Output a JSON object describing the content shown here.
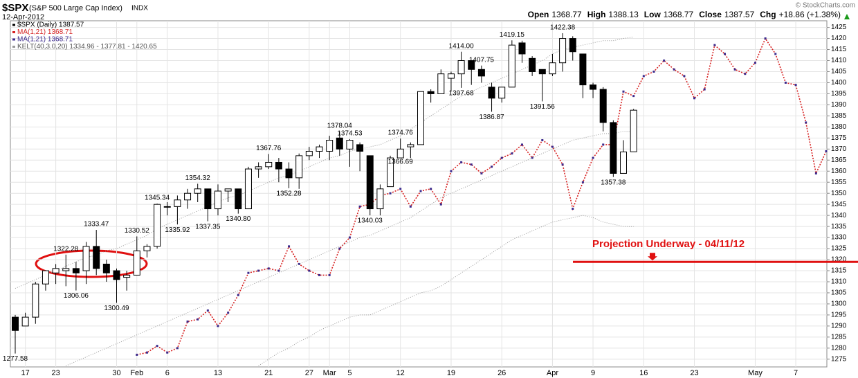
{
  "chart_data": {
    "type": "candlestick",
    "symbol": "$SPX",
    "name": "(S&P 500 Large Cap Index)",
    "exchange": "INDX",
    "date": "12-Apr-2012",
    "credit": "© StockCharts.com",
    "ohlc_header": [
      {
        "label": "Open",
        "value": "1368.77"
      },
      {
        "label": "High",
        "value": "1388.13"
      },
      {
        "label": "Low",
        "value": "1368.77"
      },
      {
        "label": "Close",
        "value": "1387.57"
      },
      {
        "label": "Chg",
        "value": "+18.86 (+1.38%)"
      }
    ],
    "legend": [
      {
        "text": "$SPX (Daily) 1387.57",
        "color": "#000000"
      },
      {
        "text": "MA(1,21) 1368.71",
        "color": "#d62020"
      },
      {
        "text": "MA(1,21) 1368.71",
        "color": "#3b2a8c"
      },
      {
        "text": "KELT(40,3.0,20) 1334.96 - 1377.81 - 1420.65",
        "color": "#999999"
      }
    ],
    "categories": [
      null,
      "17",
      null,
      null,
      "23",
      null,
      null,
      null,
      null,
      null,
      "30",
      null,
      "Feb",
      null,
      null,
      "6",
      null,
      null,
      null,
      null,
      "13",
      null,
      null,
      null,
      null,
      "21",
      null,
      null,
      null,
      "27",
      null,
      "Mar",
      null,
      "5",
      null,
      null,
      null,
      null,
      "12",
      null,
      null,
      null,
      null,
      "19",
      null,
      null,
      null,
      null,
      "26",
      null,
      null,
      null,
      null,
      "Apr",
      null,
      null,
      null,
      "9",
      null,
      null,
      null,
      null,
      "16",
      null,
      null,
      null,
      null,
      "23",
      null,
      null,
      null,
      null,
      null,
      "May",
      null,
      null,
      null,
      "7",
      null,
      null,
      null,
      null
    ],
    "candles": [
      {
        "open": 1294,
        "high": 1295,
        "low": 1277.58,
        "close": 1288
      },
      {
        "open": 1290,
        "high": 1296,
        "low": 1290,
        "close": 1294
      },
      {
        "open": 1294,
        "high": 1310,
        "low": 1291,
        "close": 1309
      },
      {
        "open": 1309,
        "high": 1315,
        "low": 1306,
        "close": 1315
      },
      {
        "open": 1314,
        "high": 1318,
        "low": 1309,
        "close": 1316
      },
      {
        "open": 1315,
        "high": 1322.28,
        "low": 1308,
        "close": 1316
      },
      {
        "open": 1316,
        "high": 1319,
        "low": 1306.06,
        "close": 1314
      },
      {
        "open": 1315,
        "high": 1328,
        "low": 1309,
        "close": 1326
      },
      {
        "open": 1326,
        "high": 1333.47,
        "low": 1313,
        "close": 1316
      },
      {
        "open": 1318,
        "high": 1320,
        "low": 1310,
        "close": 1314
      },
      {
        "open": 1315,
        "high": 1316,
        "low": 1300.49,
        "close": 1311
      },
      {
        "open": 1312,
        "high": 1315,
        "low": 1306,
        "close": 1313
      },
      {
        "open": 1313,
        "high": 1330.52,
        "low": 1313,
        "close": 1324
      },
      {
        "open": 1324,
        "high": 1327,
        "low": 1321,
        "close": 1326
      },
      {
        "open": 1326,
        "high": 1345.34,
        "low": 1325,
        "close": 1345
      },
      {
        "open": 1344,
        "high": 1346,
        "low": 1340,
        "close": 1344
      },
      {
        "open": 1344,
        "high": 1349,
        "low": 1335.92,
        "close": 1347
      },
      {
        "open": 1347,
        "high": 1352,
        "low": 1343,
        "close": 1350
      },
      {
        "open": 1350,
        "high": 1354.32,
        "low": 1346,
        "close": 1352
      },
      {
        "open": 1352,
        "high": 1352,
        "low": 1337.35,
        "close": 1343
      },
      {
        "open": 1343,
        "high": 1354,
        "low": 1340,
        "close": 1351
      },
      {
        "open": 1351,
        "high": 1352,
        "low": 1346,
        "close": 1352
      },
      {
        "open": 1352,
        "high": 1352,
        "low": 1340.8,
        "close": 1343
      },
      {
        "open": 1343,
        "high": 1362,
        "low": 1343,
        "close": 1361
      },
      {
        "open": 1361,
        "high": 1364,
        "low": 1357,
        "close": 1362
      },
      {
        "open": 1362,
        "high": 1367.76,
        "low": 1361,
        "close": 1364
      },
      {
        "open": 1364,
        "high": 1366,
        "low": 1355,
        "close": 1361
      },
      {
        "open": 1361,
        "high": 1364,
        "low": 1352.28,
        "close": 1357
      },
      {
        "open": 1357,
        "high": 1368,
        "low": 1352,
        "close": 1367
      },
      {
        "open": 1367,
        "high": 1371,
        "low": 1365,
        "close": 1369
      },
      {
        "open": 1369,
        "high": 1372,
        "low": 1366,
        "close": 1371
      },
      {
        "open": 1369,
        "high": 1376,
        "low": 1365,
        "close": 1374
      },
      {
        "open": 1375,
        "high": 1378.04,
        "low": 1367,
        "close": 1370
      },
      {
        "open": 1370,
        "high": 1374.53,
        "low": 1362,
        "close": 1374
      },
      {
        "open": 1372,
        "high": 1373,
        "low": 1360,
        "close": 1369
      },
      {
        "open": 1367,
        "high": 1367,
        "low": 1340.03,
        "close": 1343
      },
      {
        "open": 1343,
        "high": 1354,
        "low": 1340,
        "close": 1352
      },
      {
        "open": 1353,
        "high": 1367,
        "low": 1353,
        "close": 1366
      },
      {
        "open": 1366,
        "high": 1374.76,
        "low": 1366.69,
        "close": 1370
      },
      {
        "open": 1371,
        "high": 1373,
        "low": 1366,
        "close": 1372
      },
      {
        "open": 1372,
        "high": 1396,
        "low": 1372,
        "close": 1396
      },
      {
        "open": 1396,
        "high": 1397,
        "low": 1391,
        "close": 1395
      },
      {
        "open": 1395,
        "high": 1406,
        "low": 1395,
        "close": 1404
      },
      {
        "open": 1402,
        "high": 1405,
        "low": 1396,
        "close": 1404
      },
      {
        "open": 1404,
        "high": 1414,
        "low": 1397.68,
        "close": 1410
      },
      {
        "open": 1410,
        "high": 1410,
        "low": 1399,
        "close": 1406
      },
      {
        "open": 1406,
        "high": 1407.75,
        "low": 1400,
        "close": 1403
      },
      {
        "open": 1398,
        "high": 1400,
        "low": 1386.87,
        "close": 1393
      },
      {
        "open": 1393,
        "high": 1398,
        "low": 1391,
        "close": 1398
      },
      {
        "open": 1398,
        "high": 1419.15,
        "low": 1398,
        "close": 1417
      },
      {
        "open": 1418,
        "high": 1419,
        "low": 1409,
        "close": 1413
      },
      {
        "open": 1411,
        "high": 1412,
        "low": 1403,
        "close": 1405
      },
      {
        "open": 1406,
        "high": 1406,
        "low": 1391.56,
        "close": 1404
      },
      {
        "open": 1404,
        "high": 1413,
        "low": 1403,
        "close": 1409
      },
      {
        "open": 1409,
        "high": 1422.38,
        "low": 1405,
        "close": 1420
      },
      {
        "open": 1420,
        "high": 1421,
        "low": 1410,
        "close": 1414
      },
      {
        "open": 1413,
        "high": 1413,
        "low": 1393,
        "close": 1399
      },
      {
        "open": 1399,
        "high": 1400,
        "low": 1393,
        "close": 1397
      },
      {
        "open": 1397,
        "high": 1398,
        "low": 1378,
        "close": 1382
      },
      {
        "open": 1382,
        "high": 1383,
        "low": 1357.38,
        "close": 1359
      },
      {
        "open": 1359,
        "high": 1374,
        "low": 1359,
        "close": 1368.71
      },
      {
        "open": 1368.77,
        "high": 1388.13,
        "low": 1368.77,
        "close": 1387.57
      }
    ],
    "high_labels": [
      {
        "index": 5,
        "label": "1322.28"
      },
      {
        "index": 8,
        "label": "1333.47"
      },
      {
        "index": 12,
        "label": "1330.52"
      },
      {
        "index": 14,
        "label": "1345.34"
      },
      {
        "index": 18,
        "label": "1354.32"
      },
      {
        "index": 25,
        "label": "1367.76"
      },
      {
        "index": 32,
        "label": "1378.04"
      },
      {
        "index": 33,
        "label": "1374.53"
      },
      {
        "index": 38,
        "label": "1374.76"
      },
      {
        "index": 44,
        "label": "1414.00"
      },
      {
        "index": 46,
        "label": "1407.75"
      },
      {
        "index": 49,
        "label": "1419.15"
      },
      {
        "index": 54,
        "label": "1422.38"
      }
    ],
    "low_labels": [
      {
        "index": 0,
        "label": "1277.58"
      },
      {
        "index": 6,
        "label": "1306.06"
      },
      {
        "index": 10,
        "label": "1300.49"
      },
      {
        "index": 16,
        "label": "1335.92"
      },
      {
        "index": 19,
        "label": "1337.35"
      },
      {
        "index": 22,
        "label": "1340.80"
      },
      {
        "index": 27,
        "label": "1352.28"
      },
      {
        "index": 35,
        "label": "1340.03"
      },
      {
        "index": 38,
        "label": "1366.69"
      },
      {
        "index": 44,
        "label": "1397.68"
      },
      {
        "index": 47,
        "label": "1386.87"
      },
      {
        "index": 52,
        "label": "1391.56"
      },
      {
        "index": 59,
        "label": "1357.38"
      }
    ],
    "series": [
      {
        "name": "MA(1,21) 1368.71",
        "color": "#d62020",
        "marker_color": "#3b2a8c",
        "style": "dotted",
        "values": [
          null,
          null,
          null,
          null,
          null,
          null,
          null,
          null,
          null,
          null,
          null,
          null,
          1277,
          1278,
          1281,
          1278,
          1280,
          1292,
          1293,
          1297,
          1290,
          1296,
          1304,
          1314,
          1315,
          1316,
          1315,
          1326,
          1318,
          1315,
          1313,
          1313,
          1325,
          1330,
          1344,
          1345,
          1349,
          1350,
          1352,
          1344,
          1351,
          1352,
          1345,
          1360,
          1364,
          1363,
          1359,
          1362,
          1366,
          1368,
          1372,
          1366,
          1374,
          1371,
          1363,
          1343,
          1355,
          1366,
          1372,
          1372,
          1396,
          1394,
          1403,
          1405,
          1410,
          1406,
          1403,
          1393,
          1397,
          1417,
          1413,
          1406,
          1404,
          1409,
          1420,
          1413,
          1400,
          1399,
          1382,
          1359,
          1369,
          null
        ]
      },
      {
        "name": "KELT upper",
        "color": "#999999",
        "style": "band",
        "values": [
          1307,
          1309,
          1311,
          1313,
          1315,
          1317,
          1319,
          1321,
          1322,
          1324,
          1325,
          1327,
          1329,
          1331,
          1334,
          1336,
          1338,
          1340,
          1342,
          1344,
          1346,
          1348,
          1349,
          1351,
          1353,
          1355,
          1357,
          1358,
          1360,
          1362,
          1364,
          1366,
          1367,
          1369,
          1370,
          1371,
          1372,
          1374,
          1376,
          1379,
          1382,
          1385,
          1388,
          1391,
          1394,
          1396,
          1398,
          1400,
          1402,
          1404,
          1406,
          1408,
          1410,
          1413,
          1415,
          1416,
          1417,
          1418,
          1419,
          1419,
          1420,
          1420.65,
          null,
          null,
          null,
          null,
          null,
          null,
          null,
          null,
          null,
          null,
          null,
          null,
          null,
          null,
          null,
          null,
          null,
          null,
          null,
          null
        ]
      },
      {
        "name": "KELT middle",
        "color": "#999999",
        "style": "band",
        "values": [
          null,
          null,
          null,
          null,
          null,
          1272,
          1274,
          1276,
          1278,
          1280,
          1282,
          1284,
          1286,
          1288,
          1290,
          1292,
          1294,
          1296,
          1298,
          1300,
          1302,
          1304,
          1306,
          1308,
          1310,
          1312,
          1314,
          1316,
          1318,
          1320,
          1322,
          1324,
          1326,
          1328,
          1330,
          1331,
          1333,
          1335,
          1337,
          1339,
          1342,
          1345,
          1348,
          1350,
          1352,
          1354,
          1356,
          1358,
          1360,
          1362,
          1364,
          1366,
          1368,
          1370,
          1372,
          1374,
          1375,
          1376,
          1377,
          1377,
          1378,
          1377.81,
          null,
          null,
          null,
          null,
          null,
          null,
          null,
          null,
          null,
          null,
          null,
          null,
          null,
          null,
          null,
          null,
          null,
          null,
          null,
          null
        ]
      },
      {
        "name": "KELT lower",
        "color": "#999999",
        "style": "band",
        "values": [
          null,
          null,
          null,
          null,
          null,
          null,
          null,
          null,
          null,
          null,
          null,
          null,
          null,
          null,
          null,
          null,
          null,
          null,
          null,
          null,
          null,
          null,
          null,
          null,
          1272,
          1275,
          1278,
          1280,
          1283,
          1285,
          1288,
          1290,
          1292,
          1294,
          1295,
          1295,
          1297,
          1299,
          1301,
          1303,
          1305,
          1306,
          1308,
          1311,
          1314,
          1317,
          1320,
          1323,
          1326,
          1329,
          1331,
          1333,
          1335,
          1337,
          1338,
          1339,
          1340,
          1339,
          1337,
          1336,
          1335,
          1334.96,
          null,
          null,
          null,
          null,
          null,
          null,
          null,
          null,
          null,
          null,
          null,
          null,
          null,
          null,
          null,
          null,
          null,
          null,
          null,
          null
        ]
      }
    ],
    "annotation": "Projection Underway - 04/11/12",
    "annotation_level": 1319,
    "annotation_color": "#e01010",
    "up_color": "#ffffff",
    "down_color": "#000000",
    "ylim": [
      1271.5,
      1428
    ],
    "yticks": [
      1275,
      1280,
      1285,
      1290,
      1295,
      1300,
      1305,
      1310,
      1315,
      1320,
      1325,
      1330,
      1335,
      1340,
      1345,
      1350,
      1355,
      1360,
      1365,
      1370,
      1375,
      1380,
      1385,
      1390,
      1395,
      1400,
      1405,
      1410,
      1415,
      1420,
      1425
    ],
    "grid": true
  }
}
